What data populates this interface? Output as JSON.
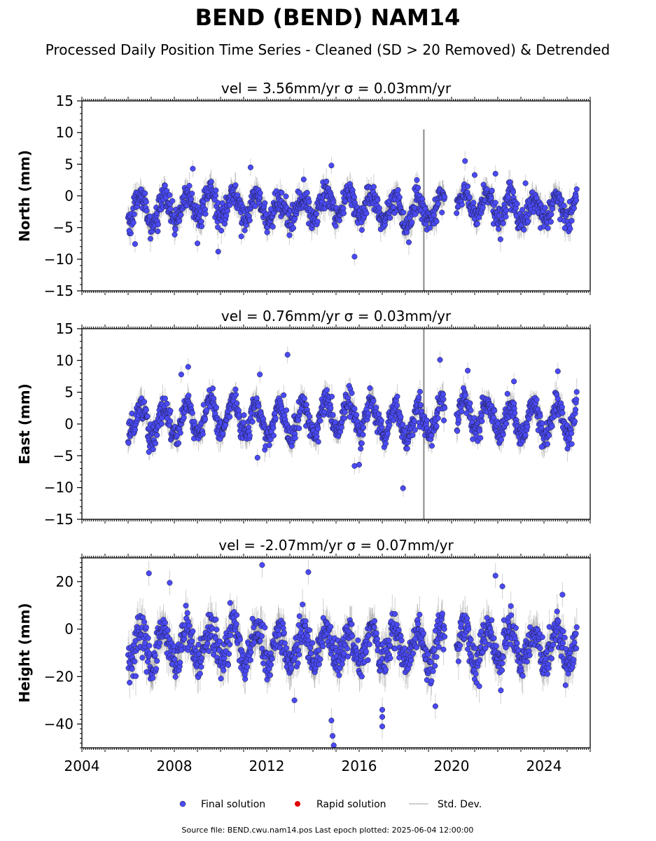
{
  "page": {
    "title": "BEND (BEND) NAM14",
    "subtitle": "Processed Daily Position Time Series - Cleaned (SD > 20 Removed) & Detrended",
    "footer": "Source file: BEND.cwu.nam14.pos  Last epoch plotted: 2025-06-04 12:00:00"
  },
  "legend": {
    "items": [
      {
        "label": "Final solution",
        "color": "#4a4af5",
        "marker": "circle"
      },
      {
        "label": "Rapid solution",
        "color": "#e00000",
        "marker": "circle"
      },
      {
        "label": "Std. Dev.",
        "color": "#c0c0c0",
        "marker": "line"
      }
    ]
  },
  "chart_data": [
    {
      "type": "scatter",
      "title": "vel = 3.56mm/yr   σ = 0.03mm/yr",
      "ylabel": "North (mm)",
      "xlim": [
        2004,
        2026
      ],
      "ylim": [
        -15,
        15
      ],
      "xticks": [
        2004,
        2008,
        2012,
        2016,
        2020,
        2024
      ],
      "yticks": [
        -15,
        -10,
        -5,
        0,
        5,
        10,
        15
      ],
      "data_range": [
        2006.0,
        2025.42
      ],
      "gap": [
        2019.7,
        2020.2
      ],
      "seasonal_amplitude": 2.0,
      "scatter": 1.0,
      "std_dev": 0.9,
      "outliers": [
        {
          "x": 2006.05,
          "y": -5.5
        },
        {
          "x": 2006.3,
          "y": -7.6
        },
        {
          "x": 2008.8,
          "y": 4.3
        },
        {
          "x": 2009.0,
          "y": -7.5
        },
        {
          "x": 2009.9,
          "y": -8.8
        },
        {
          "x": 2010.9,
          "y": -6.4
        },
        {
          "x": 2011.3,
          "y": 4.5
        },
        {
          "x": 2014.8,
          "y": 4.8
        },
        {
          "x": 2015.8,
          "y": -9.6
        },
        {
          "x": 2018.5,
          "y": 2.5
        },
        {
          "x": 2021.0,
          "y": 3.3
        },
        {
          "x": 2021.9,
          "y": 3.5
        },
        {
          "x": 2023.2,
          "y": 2.0
        },
        {
          "x": 2024.9,
          "y": -5.1
        }
      ],
      "spikes": [
        {
          "x": 2018.8,
          "lo": -15,
          "hi": 10.5
        }
      ]
    },
    {
      "type": "scatter",
      "title": "vel = 0.76mm/yr   σ = 0.03mm/yr",
      "ylabel": "East (mm)",
      "xlim": [
        2004,
        2026
      ],
      "ylim": [
        -15,
        15
      ],
      "xticks": [
        2004,
        2008,
        2012,
        2016,
        2020,
        2024
      ],
      "yticks": [
        -15,
        -10,
        -5,
        0,
        5,
        10,
        15
      ],
      "data_range": [
        2006.0,
        2025.42
      ],
      "gap": [
        2019.7,
        2020.2
      ],
      "seasonal_amplitude": 2.6,
      "scatter": 1.0,
      "std_dev": 0.9,
      "outliers": [
        {
          "x": 2006.9,
          "y": -4.4
        },
        {
          "x": 2008.6,
          "y": 9.0
        },
        {
          "x": 2008.3,
          "y": 7.8
        },
        {
          "x": 2011.7,
          "y": 7.8
        },
        {
          "x": 2012.9,
          "y": 10.9
        },
        {
          "x": 2011.6,
          "y": -5.3
        },
        {
          "x": 2015.8,
          "y": -6.6
        },
        {
          "x": 2016.0,
          "y": -6.4
        },
        {
          "x": 2017.9,
          "y": -10.1
        },
        {
          "x": 2019.5,
          "y": 10.1
        },
        {
          "x": 2020.7,
          "y": 8.4
        },
        {
          "x": 2022.7,
          "y": 6.7
        },
        {
          "x": 2024.6,
          "y": 8.3
        },
        {
          "x": 2023.9,
          "y": -3.6
        }
      ],
      "spikes": [
        {
          "x": 2018.8,
          "lo": -15,
          "hi": 15
        }
      ]
    },
    {
      "type": "scatter",
      "title": "vel = -2.07mm/yr   σ = 0.07mm/yr",
      "ylabel": "Height (mm)",
      "xlim": [
        2004,
        2026
      ],
      "ylim": [
        -50,
        30
      ],
      "xticks": [
        2004,
        2008,
        2012,
        2016,
        2020,
        2024
      ],
      "yticks": [
        -40,
        -20,
        0,
        20
      ],
      "data_range": [
        2006.0,
        2025.42
      ],
      "gap": [
        2019.7,
        2020.2
      ],
      "seasonal_amplitude": 7.5,
      "scatter": 4.0,
      "std_dev": 3.5,
      "outliers": [
        {
          "x": 2006.9,
          "y": 23.5
        },
        {
          "x": 2007.8,
          "y": 19.5
        },
        {
          "x": 2011.8,
          "y": 27.0
        },
        {
          "x": 2013.8,
          "y": 24.0
        },
        {
          "x": 2013.2,
          "y": -30.0
        },
        {
          "x": 2014.8,
          "y": -38.5
        },
        {
          "x": 2014.85,
          "y": -45.0
        },
        {
          "x": 2014.9,
          "y": -49.0
        },
        {
          "x": 2017.0,
          "y": -34.0
        },
        {
          "x": 2017.0,
          "y": -37.0
        },
        {
          "x": 2017.0,
          "y": -41.0
        },
        {
          "x": 2019.3,
          "y": -32.5
        },
        {
          "x": 2021.9,
          "y": 22.5
        },
        {
          "x": 2022.2,
          "y": 18.0
        },
        {
          "x": 2024.8,
          "y": 14.5
        }
      ],
      "spikes": []
    }
  ]
}
